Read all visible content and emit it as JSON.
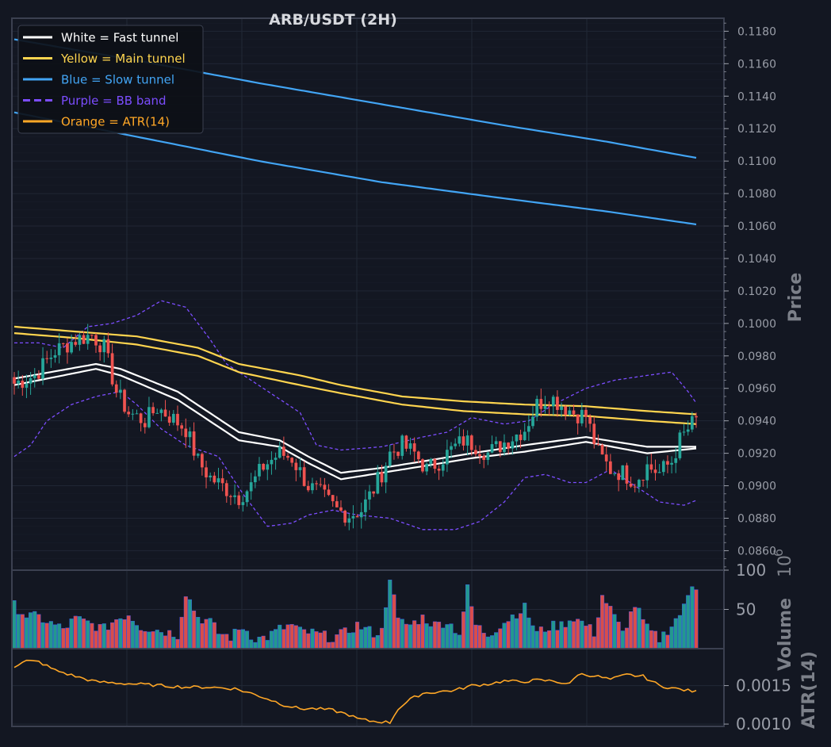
{
  "chart_data": {
    "type": "candlestick",
    "title": "ARB/USDT (2H)",
    "colors": {
      "background": "#131722",
      "grid": "#222836",
      "frame": "#3b4050",
      "up": "#26a69a",
      "down": "#ef5350",
      "fast_tunnel": "#ffffff",
      "main_tunnel": "#ffd54f",
      "slow_tunnel": "#42a5f5",
      "bb_band": "#7c4dff",
      "atr": "#ffa726",
      "tick_text": "#9a9ea8",
      "title_text": "#d7d9de"
    },
    "legend": {
      "placement": "top-left",
      "items": [
        {
          "label": "White = Fast tunnel",
          "color": "#ffffff",
          "dash": false
        },
        {
          "label": "Yellow = Main tunnel",
          "color": "#ffd54f",
          "dash": false
        },
        {
          "label": "Blue = Slow tunnel",
          "color": "#42a5f5",
          "dash": false
        },
        {
          "label": "Purple = BB band",
          "color": "#7c4dff",
          "dash": true
        },
        {
          "label": "Orange = ATR(14)",
          "color": "#ffa726",
          "dash": false
        }
      ]
    },
    "price_panel": {
      "ylabel": "Price",
      "ylim": [
        0.0848,
        0.1188
      ],
      "ticks": [
        "0.0860",
        "0.0880",
        "0.0900",
        "0.0920",
        "0.0940",
        "0.0960",
        "0.0980",
        "0.1000",
        "0.1020",
        "0.1040",
        "0.1060",
        "0.1080",
        "0.1100",
        "0.1120",
        "0.1140",
        "0.1160",
        "0.1180"
      ]
    },
    "volume_panel": {
      "ylabel": "Volume",
      "multiplier": "10",
      "exponent": "6",
      "ylim": [
        0,
        100
      ],
      "ticks": [
        "50",
        "100"
      ]
    },
    "atr_panel": {
      "ylabel": "ATR(14)",
      "ylim": [
        0.00097,
        0.00198
      ],
      "ticks": [
        "0.0010",
        "0.0015"
      ]
    },
    "series_anchor": {
      "close_anchors": [
        [
          0,
          0.0963
        ],
        [
          5,
          0.0968
        ],
        [
          10,
          0.0983
        ],
        [
          15,
          0.099
        ],
        [
          19,
          0.0993
        ],
        [
          22,
          0.0985
        ],
        [
          25,
          0.0958
        ],
        [
          28,
          0.0945
        ],
        [
          32,
          0.094
        ],
        [
          35,
          0.0948
        ],
        [
          38,
          0.0943
        ],
        [
          42,
          0.0935
        ],
        [
          45,
          0.0915
        ],
        [
          48,
          0.0905
        ],
        [
          52,
          0.0898
        ],
        [
          55,
          0.0893
        ],
        [
          58,
          0.09
        ],
        [
          61,
          0.0912
        ],
        [
          65,
          0.092
        ],
        [
          68,
          0.0917
        ],
        [
          72,
          0.09
        ],
        [
          75,
          0.0895
        ],
        [
          79,
          0.0885
        ],
        [
          82,
          0.0882
        ],
        [
          85,
          0.0885
        ],
        [
          88,
          0.0898
        ],
        [
          90,
          0.0908
        ],
        [
          92,
          0.092
        ],
        [
          95,
          0.0925
        ],
        [
          98,
          0.092
        ],
        [
          101,
          0.091
        ],
        [
          104,
          0.0915
        ],
        [
          107,
          0.0922
        ],
        [
          110,
          0.0928
        ],
        [
          113,
          0.0925
        ],
        [
          116,
          0.092
        ],
        [
          119,
          0.0925
        ],
        [
          122,
          0.093
        ],
        [
          125,
          0.0935
        ],
        [
          128,
          0.095
        ],
        [
          131,
          0.0955
        ],
        [
          134,
          0.095
        ],
        [
          137,
          0.0945
        ],
        [
          140,
          0.0943
        ],
        [
          143,
          0.092
        ],
        [
          146,
          0.091
        ],
        [
          149,
          0.0908
        ],
        [
          152,
          0.0903
        ],
        [
          155,
          0.0912
        ],
        [
          158,
          0.0908
        ],
        [
          161,
          0.0915
        ],
        [
          163,
          0.0928
        ],
        [
          166,
          0.0938
        ],
        [
          167,
          0.094
        ]
      ],
      "count": 168
    },
    "tunnels": {
      "fast": {
        "upper": [
          [
            0,
            0.0966
          ],
          [
            20,
            0.0975
          ],
          [
            26,
            0.0972
          ],
          [
            40,
            0.0958
          ],
          [
            55,
            0.0933
          ],
          [
            65,
            0.0928
          ],
          [
            72,
            0.0918
          ],
          [
            80,
            0.0908
          ],
          [
            90,
            0.0911
          ],
          [
            100,
            0.0915
          ],
          [
            112,
            0.092
          ],
          [
            125,
            0.0925
          ],
          [
            140,
            0.093
          ],
          [
            155,
            0.0924
          ],
          [
            167,
            0.0924
          ]
        ],
        "lower": [
          [
            0,
            0.0962
          ],
          [
            20,
            0.0972
          ],
          [
            26,
            0.0968
          ],
          [
            40,
            0.0953
          ],
          [
            55,
            0.0928
          ],
          [
            65,
            0.0924
          ],
          [
            72,
            0.0914
          ],
          [
            80,
            0.0904
          ],
          [
            90,
            0.0908
          ],
          [
            100,
            0.0912
          ],
          [
            112,
            0.0917
          ],
          [
            125,
            0.0921
          ],
          [
            140,
            0.0927
          ],
          [
            155,
            0.092
          ],
          [
            167,
            0.0923
          ]
        ]
      },
      "main": {
        "upper": [
          [
            0,
            0.0998
          ],
          [
            15,
            0.0995
          ],
          [
            30,
            0.0992
          ],
          [
            45,
            0.0985
          ],
          [
            55,
            0.0975
          ],
          [
            70,
            0.0968
          ],
          [
            80,
            0.0962
          ],
          [
            95,
            0.0955
          ],
          [
            110,
            0.0952
          ],
          [
            125,
            0.095
          ],
          [
            140,
            0.0949
          ],
          [
            155,
            0.0946
          ],
          [
            167,
            0.0944
          ]
        ],
        "lower": [
          [
            0,
            0.0994
          ],
          [
            15,
            0.0991
          ],
          [
            30,
            0.0987
          ],
          [
            45,
            0.098
          ],
          [
            55,
            0.097
          ],
          [
            70,
            0.0962
          ],
          [
            80,
            0.0957
          ],
          [
            95,
            0.095
          ],
          [
            110,
            0.0946
          ],
          [
            125,
            0.0944
          ],
          [
            140,
            0.0943
          ],
          [
            155,
            0.094
          ],
          [
            167,
            0.0938
          ]
        ]
      },
      "slow": {
        "upper": [
          [
            0,
            0.1175
          ],
          [
            30,
            0.1162
          ],
          [
            60,
            0.1148
          ],
          [
            90,
            0.1135
          ],
          [
            120,
            0.1122
          ],
          [
            145,
            0.1112
          ],
          [
            167,
            0.1102
          ]
        ],
        "lower": [
          [
            0,
            0.113
          ],
          [
            30,
            0.1115
          ],
          [
            60,
            0.11
          ],
          [
            90,
            0.1087
          ],
          [
            120,
            0.1077
          ],
          [
            145,
            0.1069
          ],
          [
            167,
            0.1061
          ]
        ]
      }
    },
    "bb_band": {
      "upper": [
        [
          0,
          0.0988
        ],
        [
          6,
          0.0988
        ],
        [
          12,
          0.0985
        ],
        [
          18,
          0.0998
        ],
        [
          24,
          0.1
        ],
        [
          30,
          0.1005
        ],
        [
          36,
          0.1014
        ],
        [
          42,
          0.101
        ],
        [
          48,
          0.099
        ],
        [
          52,
          0.0975
        ],
        [
          58,
          0.0965
        ],
        [
          64,
          0.0955
        ],
        [
          70,
          0.0945
        ],
        [
          74,
          0.0925
        ],
        [
          80,
          0.0922
        ],
        [
          90,
          0.0924
        ],
        [
          100,
          0.093
        ],
        [
          106,
          0.0933
        ],
        [
          112,
          0.0942
        ],
        [
          120,
          0.0938
        ],
        [
          126,
          0.094
        ],
        [
          132,
          0.095
        ],
        [
          140,
          0.096
        ],
        [
          147,
          0.0965
        ],
        [
          155,
          0.0968
        ],
        [
          161,
          0.097
        ],
        [
          165,
          0.0958
        ],
        [
          167,
          0.0951
        ]
      ],
      "lower": [
        [
          0,
          0.0918
        ],
        [
          4,
          0.0925
        ],
        [
          8,
          0.094
        ],
        [
          14,
          0.095
        ],
        [
          20,
          0.0955
        ],
        [
          26,
          0.0958
        ],
        [
          30,
          0.095
        ],
        [
          36,
          0.0935
        ],
        [
          42,
          0.0925
        ],
        [
          50,
          0.0918
        ],
        [
          56,
          0.0895
        ],
        [
          62,
          0.0875
        ],
        [
          68,
          0.0877
        ],
        [
          72,
          0.0882
        ],
        [
          78,
          0.0885
        ],
        [
          84,
          0.0882
        ],
        [
          92,
          0.088
        ],
        [
          100,
          0.0873
        ],
        [
          108,
          0.0873
        ],
        [
          114,
          0.0878
        ],
        [
          120,
          0.089
        ],
        [
          125,
          0.0905
        ],
        [
          130,
          0.0907
        ],
        [
          136,
          0.0902
        ],
        [
          140,
          0.0902
        ],
        [
          146,
          0.091
        ],
        [
          152,
          0.09
        ],
        [
          158,
          0.089
        ],
        [
          164,
          0.0888
        ],
        [
          167,
          0.0891
        ]
      ]
    },
    "atr_series": [
      [
        0,
        0.00175
      ],
      [
        3,
        0.00182
      ],
      [
        6,
        0.00181
      ],
      [
        10,
        0.0017
      ],
      [
        15,
        0.00162
      ],
      [
        20,
        0.00155
      ],
      [
        26,
        0.00153
      ],
      [
        30,
        0.00152
      ],
      [
        36,
        0.0015
      ],
      [
        42,
        0.00148
      ],
      [
        48,
        0.00148
      ],
      [
        54,
        0.00146
      ],
      [
        58,
        0.0014
      ],
      [
        62,
        0.00133
      ],
      [
        66,
        0.00125
      ],
      [
        70,
        0.0012
      ],
      [
        74,
        0.0012
      ],
      [
        78,
        0.00118
      ],
      [
        82,
        0.00112
      ],
      [
        84,
        0.00107
      ],
      [
        87,
        0.00104
      ],
      [
        90,
        0.00103
      ],
      [
        92,
        0.00102
      ],
      [
        94,
        0.0012
      ],
      [
        97,
        0.00132
      ],
      [
        100,
        0.0014
      ],
      [
        104,
        0.00142
      ],
      [
        108,
        0.00144
      ],
      [
        112,
        0.0015
      ],
      [
        116,
        0.00152
      ],
      [
        120,
        0.00156
      ],
      [
        124,
        0.00155
      ],
      [
        128,
        0.00157
      ],
      [
        132,
        0.00156
      ],
      [
        136,
        0.00152
      ],
      [
        138,
        0.00165
      ],
      [
        142,
        0.00163
      ],
      [
        146,
        0.00158
      ],
      [
        150,
        0.00164
      ],
      [
        154,
        0.00162
      ],
      [
        158,
        0.0015
      ],
      [
        162,
        0.00146
      ],
      [
        167,
        0.00142
      ]
    ],
    "volume_series": [
      [
        0,
        55
      ],
      [
        3,
        42
      ],
      [
        6,
        40
      ],
      [
        9,
        32
      ],
      [
        12,
        25
      ],
      [
        15,
        38
      ],
      [
        18,
        33
      ],
      [
        22,
        25
      ],
      [
        25,
        38
      ],
      [
        28,
        44
      ],
      [
        31,
        28
      ],
      [
        34,
        25
      ],
      [
        37,
        22
      ],
      [
        40,
        18
      ],
      [
        42,
        72
      ],
      [
        45,
        40
      ],
      [
        48,
        34
      ],
      [
        50,
        20
      ],
      [
        53,
        15
      ],
      [
        56,
        28
      ],
      [
        59,
        12
      ],
      [
        62,
        15
      ],
      [
        65,
        25
      ],
      [
        68,
        30
      ],
      [
        70,
        22
      ],
      [
        73,
        20
      ],
      [
        76,
        16
      ],
      [
        78,
        14
      ],
      [
        81,
        20
      ],
      [
        84,
        30
      ],
      [
        86,
        25
      ],
      [
        88,
        20
      ],
      [
        90,
        22
      ],
      [
        92,
        93
      ],
      [
        94,
        35
      ],
      [
        97,
        30
      ],
      [
        100,
        40
      ],
      [
        103,
        30
      ],
      [
        106,
        35
      ],
      [
        109,
        20
      ],
      [
        111,
        76
      ],
      [
        113,
        30
      ],
      [
        116,
        18
      ],
      [
        119,
        30
      ],
      [
        122,
        42
      ],
      [
        125,
        52
      ],
      [
        128,
        20
      ],
      [
        131,
        28
      ],
      [
        134,
        30
      ],
      [
        137,
        40
      ],
      [
        140,
        30
      ],
      [
        142,
        20
      ],
      [
        144,
        68
      ],
      [
        146,
        50
      ],
      [
        149,
        20
      ],
      [
        152,
        56
      ],
      [
        155,
        25
      ],
      [
        158,
        12
      ],
      [
        161,
        30
      ],
      [
        164,
        52
      ],
      [
        166,
        82
      ],
      [
        167,
        80
      ]
    ]
  }
}
